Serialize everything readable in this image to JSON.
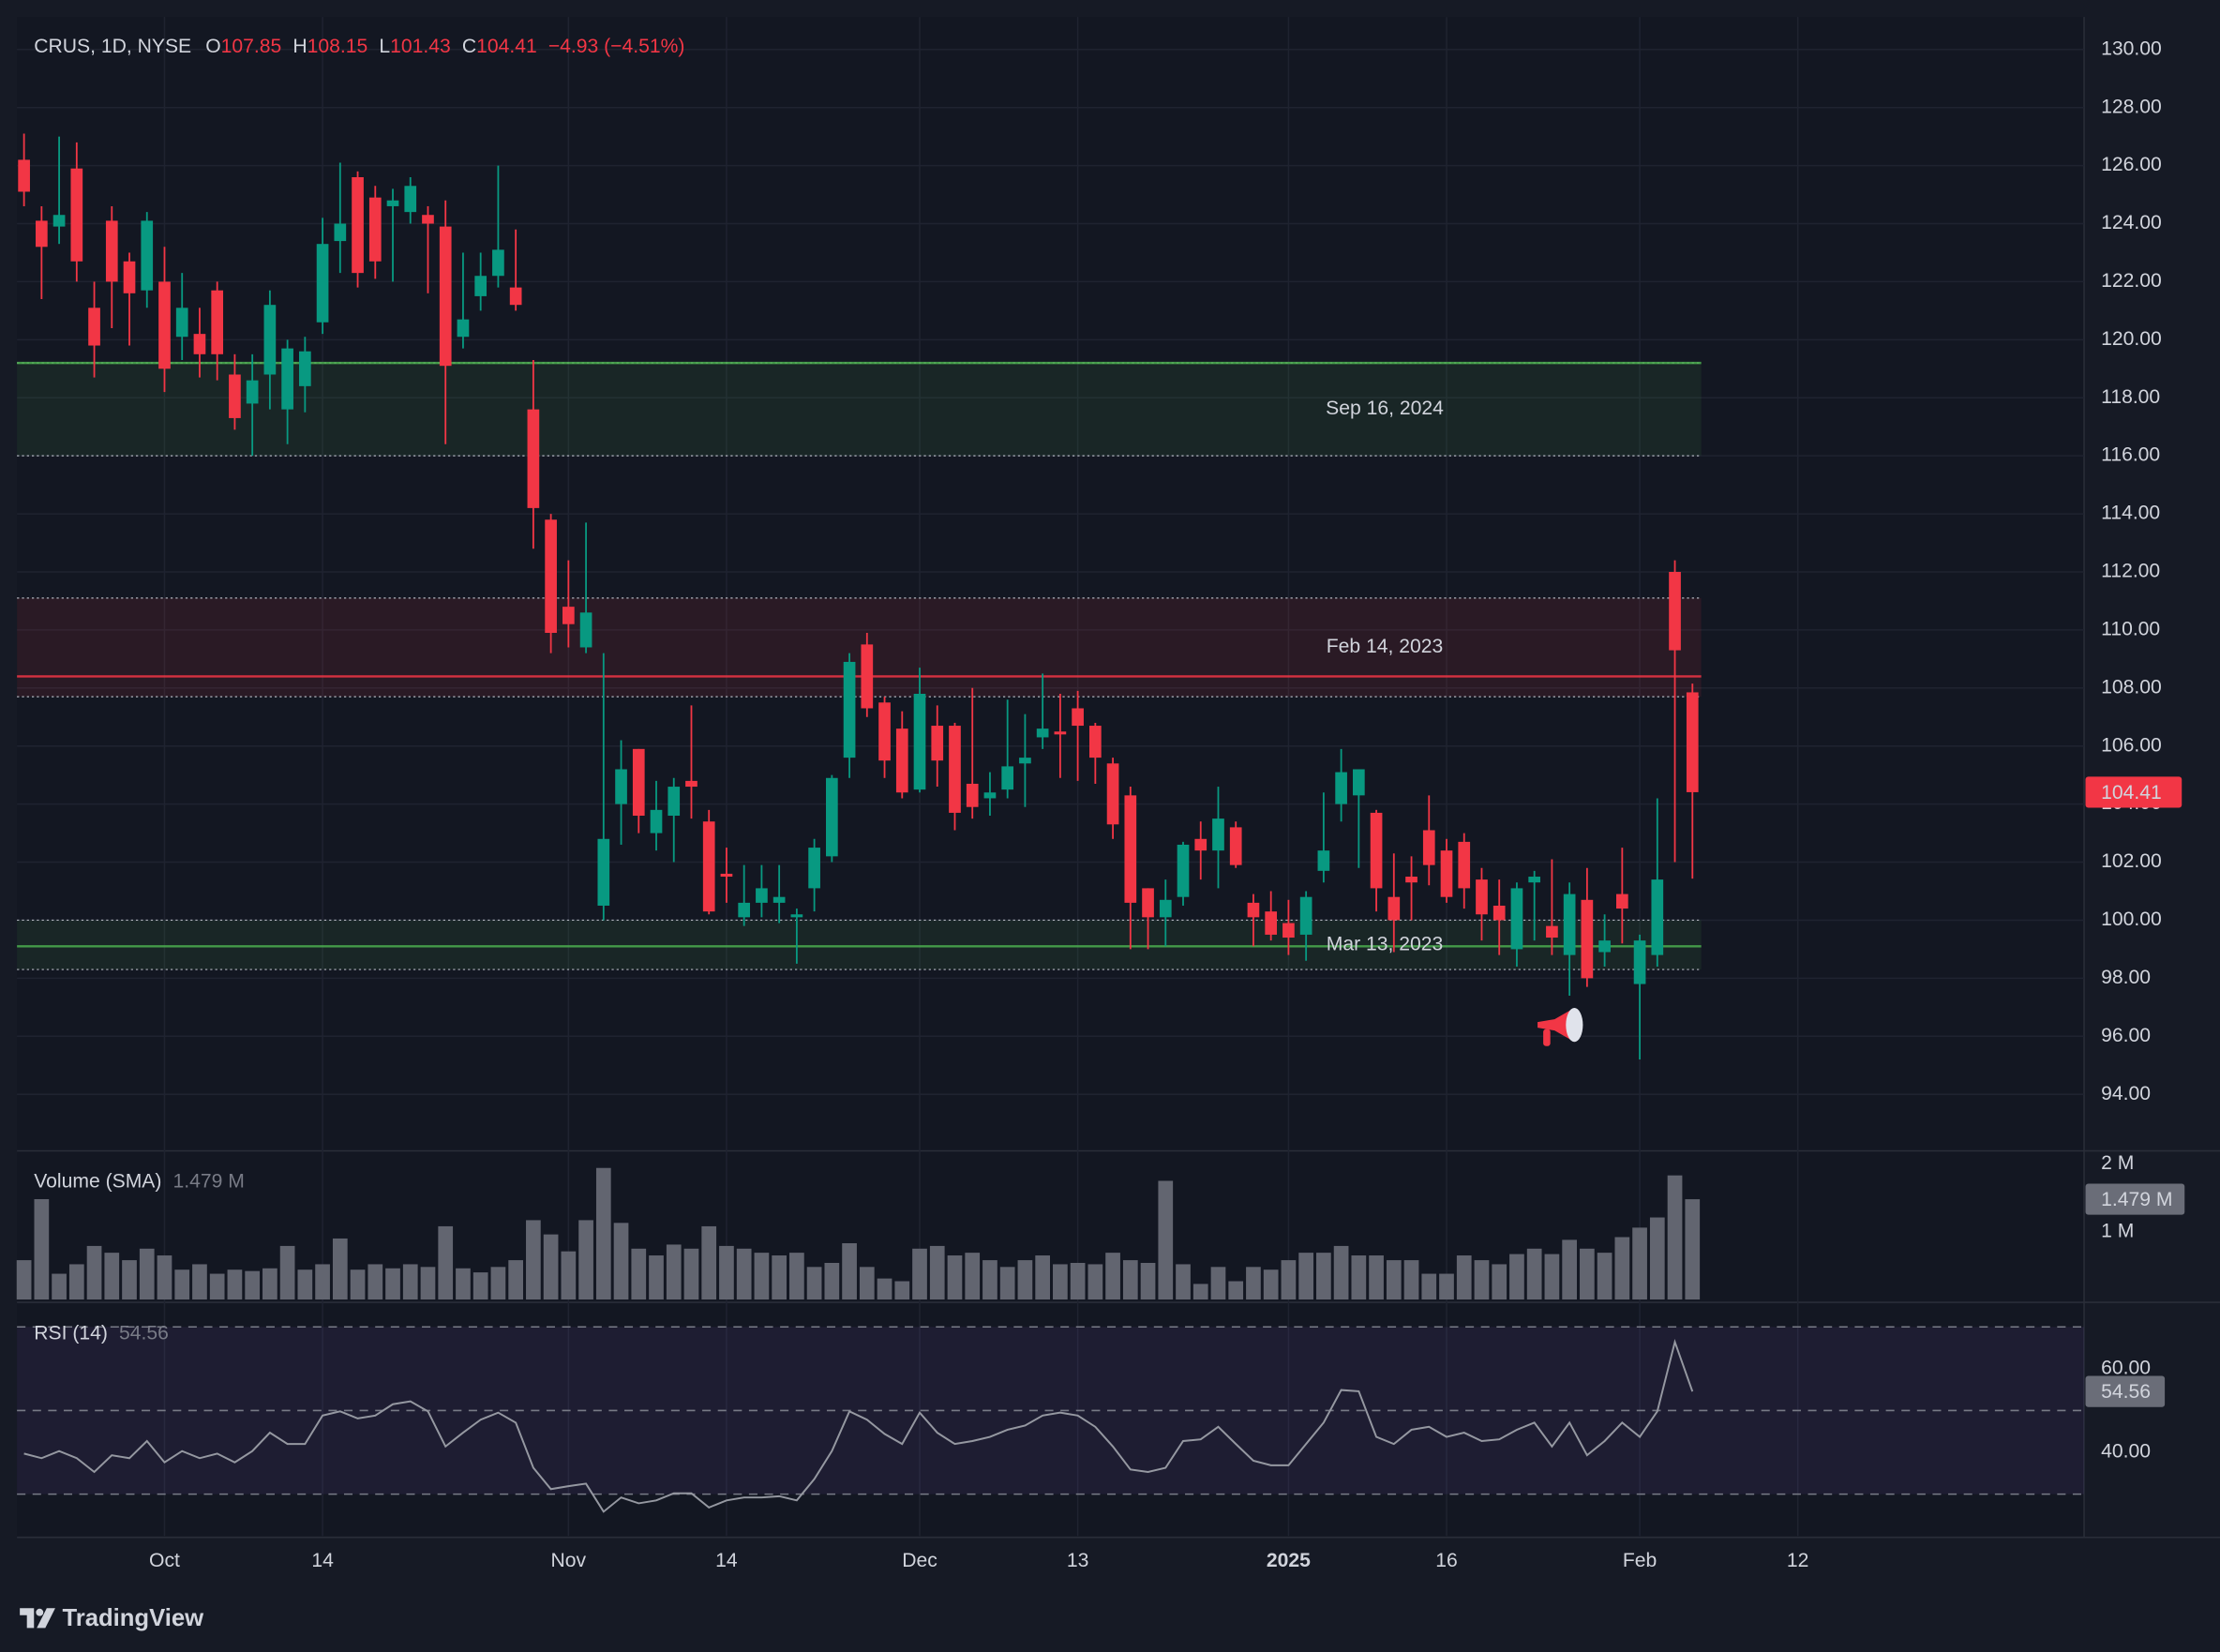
{
  "chart_data": [
    {
      "type": "candlestick",
      "title": "CRUS, 1D, NYSE",
      "ohlc_names": [
        "O",
        "H",
        "L",
        "C"
      ],
      "change_label": "−4.93 (−4.51%)",
      "up_color": "#089981",
      "down_color": "#f23645",
      "open": [
        126.2,
        124.1,
        123.9,
        125.9,
        121.1,
        124.1,
        122.7,
        121.7,
        122.0,
        120.1,
        120.2,
        121.7,
        118.8,
        117.8,
        118.8,
        117.6,
        118.4,
        120.6,
        123.4,
        125.6,
        124.9,
        124.6,
        124.4,
        124.3,
        123.9,
        120.1,
        121.5,
        122.2,
        121.8,
        117.6,
        113.8,
        110.8,
        109.4,
        100.5,
        104.0,
        105.9,
        103.0,
        103.6,
        104.8,
        103.4,
        101.6,
        100.1,
        100.6,
        100.6,
        100.1,
        101.1,
        102.2,
        105.6,
        109.5,
        107.5,
        106.6,
        104.5,
        106.7,
        106.7,
        104.7,
        104.2,
        104.5,
        105.4,
        106.3,
        106.5,
        107.3,
        106.7,
        105.4,
        104.3,
        101.1,
        100.1,
        100.8,
        102.8,
        102.4,
        103.2,
        100.6,
        100.3,
        99.9,
        99.5,
        101.7,
        104.0,
        104.3,
        103.7,
        100.8,
        101.5,
        103.1,
        102.4,
        102.7,
        101.4,
        100.5,
        99.0,
        101.3,
        99.8,
        98.8,
        100.7,
        98.9,
        100.9,
        97.8,
        98.8,
        112.0,
        107.85
      ],
      "high": [
        127.1,
        124.6,
        127.0,
        126.8,
        122.0,
        124.6,
        123.0,
        124.4,
        123.2,
        122.3,
        121.1,
        122.0,
        119.5,
        119.5,
        121.7,
        120.0,
        120.1,
        124.2,
        126.1,
        125.8,
        125.3,
        125.2,
        125.6,
        124.6,
        124.8,
        123.0,
        123.0,
        126.0,
        123.8,
        119.3,
        114.0,
        112.4,
        113.7,
        109.2,
        106.2,
        105.9,
        104.8,
        104.9,
        107.4,
        103.8,
        102.5,
        101.9,
        101.9,
        101.9,
        100.4,
        102.8,
        105.0,
        109.2,
        109.9,
        107.7,
        107.2,
        108.7,
        107.4,
        106.8,
        108.0,
        105.1,
        107.6,
        107.1,
        108.5,
        107.8,
        107.9,
        106.8,
        105.6,
        104.6,
        101.1,
        101.4,
        102.7,
        103.4,
        104.6,
        103.4,
        100.9,
        101.0,
        100.7,
        101.0,
        104.4,
        105.9,
        105.2,
        103.8,
        102.3,
        102.2,
        104.3,
        102.8,
        103.0,
        101.8,
        101.4,
        101.3,
        101.7,
        102.1,
        101.3,
        101.8,
        100.2,
        102.5,
        99.5,
        104.2,
        112.4,
        108.15
      ],
      "low": [
        124.6,
        121.4,
        123.3,
        122.0,
        118.7,
        120.4,
        119.8,
        121.1,
        118.2,
        119.3,
        118.7,
        118.6,
        116.9,
        116.0,
        117.6,
        116.4,
        117.5,
        120.2,
        122.3,
        121.8,
        122.1,
        122.0,
        124.0,
        121.6,
        116.4,
        119.7,
        121.0,
        121.8,
        121.0,
        112.8,
        109.2,
        109.4,
        109.2,
        100.0,
        102.6,
        103.0,
        102.4,
        102.0,
        103.5,
        100.2,
        100.6,
        99.8,
        100.1,
        99.9,
        98.5,
        100.3,
        102.0,
        104.9,
        107.0,
        104.9,
        104.2,
        104.4,
        104.6,
        103.1,
        103.5,
        103.6,
        104.2,
        103.9,
        105.9,
        104.9,
        104.8,
        104.7,
        102.8,
        99.0,
        99.0,
        99.1,
        100.5,
        101.4,
        101.1,
        101.8,
        99.1,
        99.3,
        98.8,
        98.6,
        101.3,
        103.4,
        101.8,
        100.3,
        98.9,
        100.0,
        101.2,
        100.6,
        100.4,
        99.3,
        98.8,
        98.4,
        99.3,
        98.8,
        97.4,
        97.7,
        98.4,
        99.2,
        95.2,
        98.4,
        102.0,
        101.43
      ],
      "close": [
        125.1,
        123.2,
        124.3,
        122.7,
        119.8,
        122.0,
        121.6,
        124.1,
        119.0,
        121.1,
        119.5,
        119.5,
        117.3,
        118.6,
        121.2,
        119.7,
        119.6,
        123.3,
        124.0,
        122.3,
        122.7,
        124.8,
        125.3,
        124.0,
        119.1,
        120.7,
        122.2,
        123.1,
        121.2,
        114.2,
        109.9,
        110.2,
        110.6,
        102.8,
        105.2,
        103.6,
        103.8,
        104.6,
        104.6,
        100.3,
        101.5,
        100.6,
        101.1,
        100.8,
        100.2,
        102.5,
        104.9,
        108.9,
        107.3,
        105.5,
        104.4,
        107.8,
        105.5,
        103.7,
        103.9,
        104.4,
        105.3,
        105.6,
        106.6,
        106.4,
        106.7,
        105.6,
        103.3,
        100.6,
        100.1,
        100.7,
        102.6,
        102.4,
        103.5,
        101.9,
        100.1,
        99.5,
        99.4,
        100.8,
        102.4,
        105.1,
        105.2,
        101.1,
        100.0,
        101.3,
        101.9,
        100.8,
        101.1,
        100.2,
        100.0,
        101.1,
        101.5,
        99.4,
        100.9,
        98.0,
        99.3,
        100.4,
        99.3,
        101.4,
        109.3,
        104.41
      ],
      "xlim": [
        -0.4,
        117.3
      ],
      "xticks": [
        {
          "value": 8,
          "label": "Oct"
        },
        {
          "value": 17,
          "label": "14"
        },
        {
          "value": 31,
          "label": "Nov"
        },
        {
          "value": 40,
          "label": "14"
        },
        {
          "value": 51,
          "label": "Dec"
        },
        {
          "value": 60,
          "label": "13"
        },
        {
          "value": 72,
          "label": "2025",
          "major": true
        },
        {
          "value": 81,
          "label": "16"
        },
        {
          "value": 92,
          "label": "Feb"
        },
        {
          "value": 101,
          "label": "12"
        }
      ],
      "ylim": [
        92.1,
        131.12
      ],
      "yticks": [
        {
          "value": 130,
          "label": "130.00"
        },
        {
          "value": 128,
          "label": "128.00"
        },
        {
          "value": 126,
          "label": "126.00"
        },
        {
          "value": 124,
          "label": "124.00"
        },
        {
          "value": 122,
          "label": "122.00"
        },
        {
          "value": 120,
          "label": "120.00"
        },
        {
          "value": 118,
          "label": "118.00"
        },
        {
          "value": 116,
          "label": "116.00"
        },
        {
          "value": 114,
          "label": "114.00"
        },
        {
          "value": 112,
          "label": "112.00"
        },
        {
          "value": 110,
          "label": "110.00"
        },
        {
          "value": 108,
          "label": "108.00"
        },
        {
          "value": 106,
          "label": "106.00"
        },
        {
          "value": 104,
          "label": "104.00"
        },
        {
          "value": 102,
          "label": "102.00"
        },
        {
          "value": 100,
          "label": "100.00"
        },
        {
          "value": 98,
          "label": "98.00"
        },
        {
          "value": 96,
          "label": "96.00"
        },
        {
          "value": 94,
          "label": "94.00"
        }
      ],
      "grid": true,
      "zones": [
        {
          "label": "Sep 16, 2024",
          "top": 119.2,
          "line": 119.2,
          "bottom": 116.0,
          "color": "#4caf50"
        },
        {
          "label": "Feb 14, 2023",
          "top": 111.1,
          "line": 108.4,
          "bottom": 107.7,
          "color": "#f23645"
        },
        {
          "label": "Mar 13, 2023",
          "top": 100.0,
          "line": 99.1,
          "bottom": 98.3,
          "color": "#4caf50"
        }
      ]
    },
    {
      "type": "bar",
      "title": "Volume (SMA)",
      "last_label": "1.479 M",
      "color": "#626570",
      "values": [
        0.58,
        1.48,
        0.38,
        0.52,
        0.79,
        0.69,
        0.58,
        0.75,
        0.65,
        0.44,
        0.52,
        0.38,
        0.44,
        0.42,
        0.46,
        0.79,
        0.44,
        0.52,
        0.9,
        0.44,
        0.52,
        0.46,
        0.52,
        0.48,
        1.08,
        0.46,
        0.4,
        0.48,
        0.58,
        1.17,
        0.96,
        0.71,
        1.17,
        1.94,
        1.13,
        0.75,
        0.65,
        0.81,
        0.75,
        1.08,
        0.79,
        0.75,
        0.69,
        0.65,
        0.69,
        0.48,
        0.54,
        0.83,
        0.48,
        0.31,
        0.27,
        0.75,
        0.79,
        0.65,
        0.69,
        0.58,
        0.48,
        0.58,
        0.65,
        0.52,
        0.54,
        0.52,
        0.69,
        0.58,
        0.54,
        1.75,
        0.52,
        0.23,
        0.48,
        0.27,
        0.48,
        0.44,
        0.58,
        0.69,
        0.69,
        0.79,
        0.65,
        0.65,
        0.58,
        0.58,
        0.38,
        0.38,
        0.65,
        0.58,
        0.52,
        0.67,
        0.75,
        0.67,
        0.88,
        0.75,
        0.69,
        0.92,
        1.06,
        1.21,
        1.83,
        1.479
      ],
      "ylim": [
        0,
        2.15
      ],
      "yticks": [
        {
          "value": 2,
          "label": "2 M"
        },
        {
          "value": 1,
          "label": "1 M"
        }
      ]
    },
    {
      "type": "line",
      "title": "RSI (14)",
      "color": "#9598a1",
      "band_color": "#7e57c2",
      "values": [
        39.7,
        38.6,
        40.3,
        38.6,
        35.3,
        39.3,
        38.6,
        42.7,
        37.6,
        40.3,
        38.6,
        39.7,
        37.6,
        40.3,
        44.7,
        42.0,
        42.0,
        48.8,
        49.8,
        48.1,
        48.8,
        51.5,
        52.2,
        49.8,
        41.4,
        44.7,
        47.8,
        49.5,
        47.1,
        36.3,
        31.2,
        31.9,
        32.5,
        25.8,
        29.2,
        27.8,
        28.5,
        30.2,
        30.2,
        26.8,
        28.5,
        29.2,
        29.2,
        29.5,
        28.5,
        33.6,
        40.3,
        49.8,
        47.8,
        44.4,
        42.0,
        49.5,
        44.7,
        42.0,
        42.7,
        43.7,
        45.4,
        46.4,
        48.8,
        49.5,
        48.8,
        46.1,
        41.4,
        35.9,
        35.3,
        36.3,
        42.7,
        43.1,
        46.1,
        42.0,
        38.0,
        36.9,
        36.9,
        42.0,
        47.1,
        54.9,
        54.6,
        43.7,
        42.0,
        45.4,
        46.1,
        43.7,
        44.7,
        42.7,
        43.1,
        45.4,
        47.1,
        41.4,
        47.1,
        39.3,
        42.7,
        47.1,
        43.7,
        49.8,
        66.4,
        54.56
      ],
      "ylim": [
        20,
        75.2
      ],
      "yticks": [
        {
          "value": 60,
          "label": "60.00"
        },
        {
          "value": 40,
          "label": "40.00"
        }
      ],
      "levels": [
        70,
        50,
        30
      ]
    }
  ],
  "footer": {
    "brand": "TradingView"
  }
}
